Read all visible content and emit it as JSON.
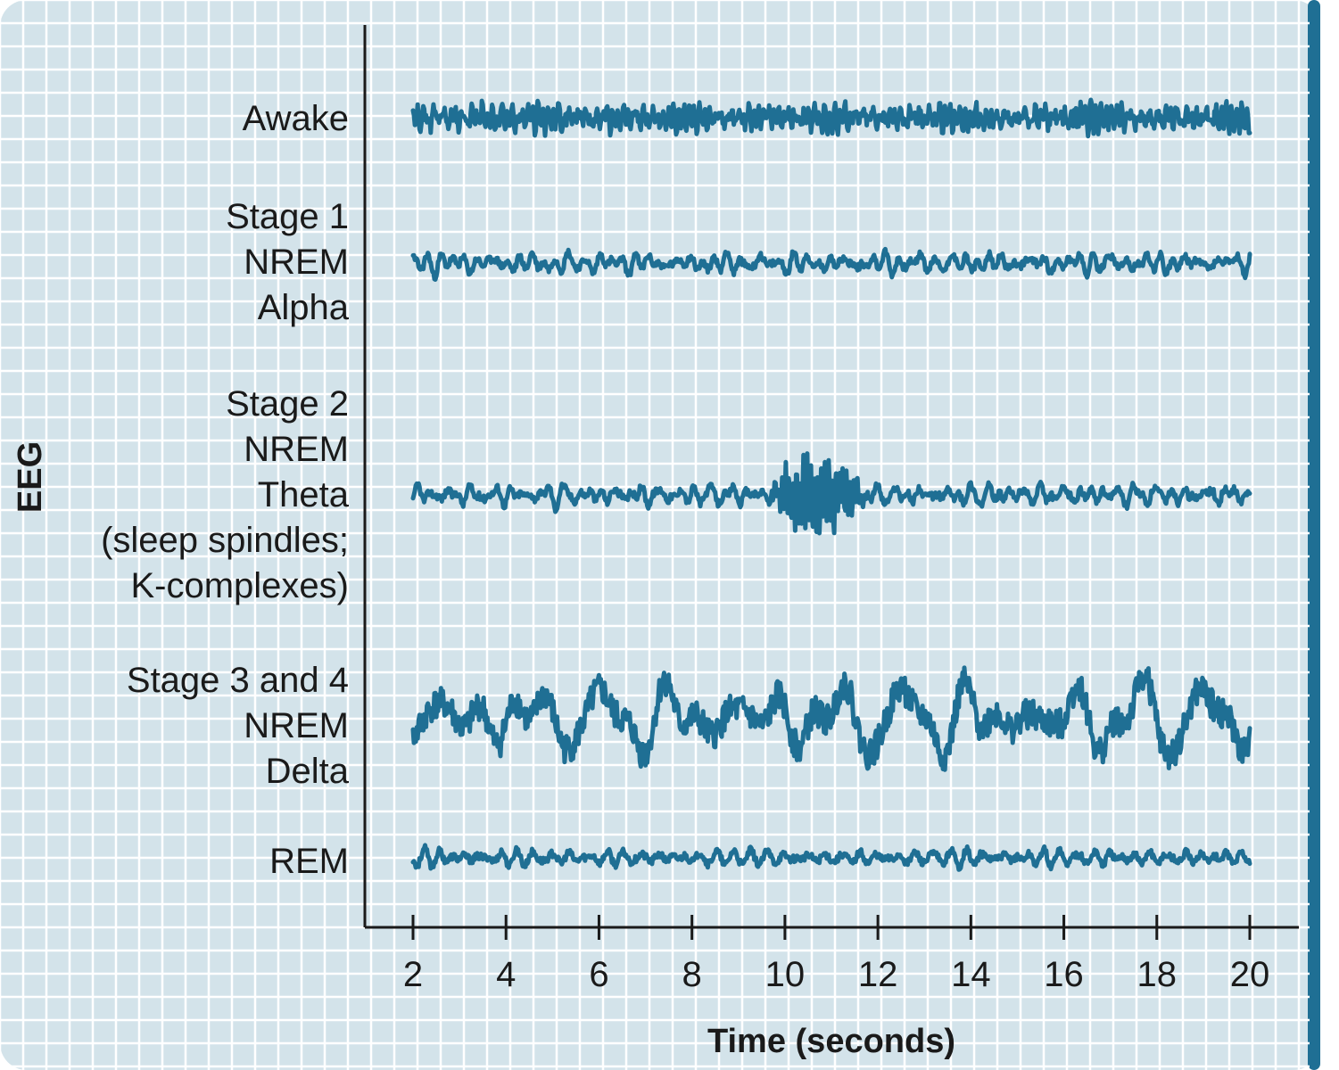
{
  "chart_data": {
    "type": "line",
    "xlabel": "Time (seconds)",
    "ylabel": "EEG",
    "xlim": [
      2,
      20
    ],
    "x_ticks": [
      "2",
      "4",
      "6",
      "8",
      "10",
      "12",
      "14",
      "16",
      "18",
      "20"
    ],
    "grid": true,
    "colors": {
      "trace": "#1f6f94",
      "grid": "#ffffff",
      "background": "#d3e3ea",
      "axis": "#1a1a1a"
    },
    "series": [
      {
        "name": "Awake",
        "label_lines": [
          "Awake"
        ],
        "amplitude": "medium",
        "frequency": "high",
        "bursts": [],
        "seed": 11
      },
      {
        "name": "Stage 1 NREM Alpha",
        "label_lines": [
          "Stage 1",
          "NREM",
          "Alpha"
        ],
        "amplitude": "low",
        "frequency": "medium",
        "bursts": [],
        "seed": 23
      },
      {
        "name": "Stage 2 NREM Theta (sleep spindles; K-complexes)",
        "label_lines": [
          "Stage 2",
          "NREM",
          "Theta",
          "(sleep spindles;",
          "K-complexes)"
        ],
        "amplitude": "low",
        "frequency": "medium",
        "bursts": [
          {
            "start": 9.6,
            "end": 11.8
          }
        ],
        "seed": 37
      },
      {
        "name": "Stage 3 and 4 NREM Delta",
        "label_lines": [
          "Stage 3 and 4",
          "NREM",
          "Delta"
        ],
        "amplitude": "high",
        "frequency": "low",
        "bursts": [],
        "seed": 41
      },
      {
        "name": "REM",
        "label_lines": [
          "REM"
        ],
        "amplitude": "low",
        "frequency": "medium",
        "bursts": [],
        "seed": 53
      }
    ]
  }
}
